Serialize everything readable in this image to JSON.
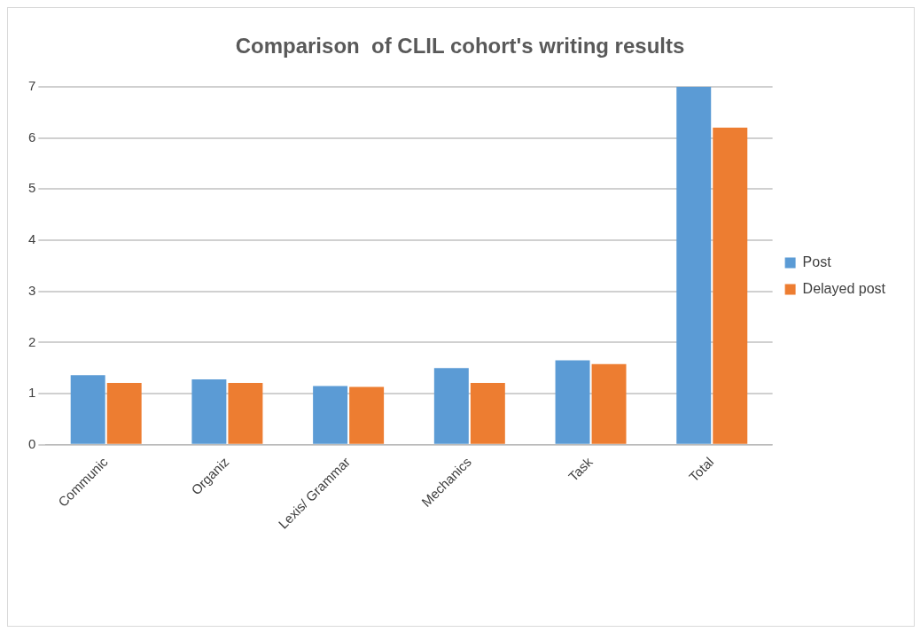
{
  "chart_data": {
    "type": "bar",
    "title": "Comparison  of CLIL cohort's writing results",
    "categories": [
      "Communic",
      "Organiz",
      "Lexis/ Grammar",
      "Mechanics",
      "Task",
      "Total"
    ],
    "series": [
      {
        "name": "Post",
        "color": "#5b9bd5",
        "values": [
          1.36,
          1.28,
          1.15,
          1.5,
          1.65,
          7.0
        ]
      },
      {
        "name": "Delayed post",
        "color": "#ed7d31",
        "values": [
          1.21,
          1.21,
          1.13,
          1.21,
          1.58,
          6.2
        ]
      }
    ],
    "ylim": [
      0,
      7
    ],
    "yticks": [
      0,
      1,
      2,
      3,
      4,
      5,
      6,
      7
    ],
    "grid": "y",
    "legend": "right"
  }
}
